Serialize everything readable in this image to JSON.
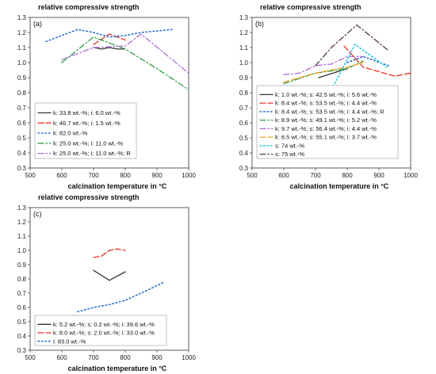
{
  "colors": {
    "black": "#333333",
    "red": "#e8322b",
    "blue": "#2a6fd6",
    "green": "#2ea043",
    "purple": "#b06ad8",
    "orange": "#f0a020",
    "cyan": "#1fc8e0",
    "darkbrown": "#5a3a3a"
  },
  "chart_data": [
    {
      "type": "line",
      "panel": "(a)",
      "title": "relative compressive strength",
      "xlabel": "calcination temperature in °C",
      "ylabel": "",
      "xlim": [
        500,
        1000
      ],
      "ylim": [
        0.3,
        1.3
      ],
      "xticks": [
        500,
        600,
        700,
        800,
        900,
        1000
      ],
      "yticks": [
        0.3,
        0.4,
        0.5,
        0.6,
        0.7,
        0.8,
        0.9,
        1.0,
        1.1,
        1.2,
        1.3
      ],
      "ytick_labels": [
        "0.3",
        "0.4",
        "0.5",
        "0.6",
        "0.7",
        "0.8",
        "0.9",
        "1.0",
        "1.1",
        "1.2",
        "1.3"
      ],
      "legend_position": "lower-left",
      "series": [
        {
          "name": "k: 33.8 wt.-%; i: 6.0 wt.-%",
          "color": "black",
          "dash": "solid",
          "x": [
            700,
            725,
            750,
            775,
            800
          ],
          "y": [
            1.1,
            1.09,
            1.1,
            1.09,
            1.09
          ]
        },
        {
          "name": "k: 46.7 wt.-%; i: 1.5 wt.-%",
          "color": "red",
          "dash": "dash",
          "x": [
            700,
            750,
            800
          ],
          "y": [
            1.12,
            1.19,
            1.15
          ]
        },
        {
          "name": "k: 82.0 wt.-%",
          "color": "blue",
          "dash": "dot",
          "x": [
            550,
            650,
            700,
            750,
            800,
            850,
            900,
            950
          ],
          "y": [
            1.14,
            1.22,
            1.2,
            1.17,
            1.18,
            1.2,
            1.21,
            1.22
          ]
        },
        {
          "name": "k: 25.0 wt.-%; i: 11.0 wt.-%",
          "color": "green",
          "dash": "dashdot",
          "x": [
            600,
            700,
            800,
            900,
            1000
          ],
          "y": [
            1.0,
            1.17,
            1.09,
            0.96,
            0.82
          ]
        },
        {
          "name": "k: 25.0 wt.-%; i: 11.0 wt.-%; R",
          "color": "purple",
          "dash": "dashdot",
          "x": [
            600,
            700,
            800,
            850,
            1000
          ],
          "y": [
            1.02,
            1.1,
            1.11,
            1.19,
            0.93
          ]
        }
      ]
    },
    {
      "type": "line",
      "panel": "(b)",
      "title": "relative compressive strength",
      "xlabel": "calcination temperature in °C",
      "ylabel": "",
      "xlim": [
        500,
        1000
      ],
      "ylim": [
        0.3,
        1.3
      ],
      "xticks": [
        500,
        600,
        700,
        800,
        900,
        1000
      ],
      "yticks": [
        0.3,
        0.4,
        0.5,
        0.6,
        0.7,
        0.8,
        0.9,
        1.0,
        1.1,
        1.2,
        1.3
      ],
      "ytick_labels": [
        "0.3",
        "0.4",
        "0.5",
        "0.6",
        "0.7",
        "0.8",
        "0.9",
        "1.0",
        "1.1",
        "1.2",
        "1.3"
      ],
      "legend_position": "lower-left",
      "series": [
        {
          "name": "k: 1.0 wt.-%; s: 42.5 wt.-%; i: 5.6 wt.-%",
          "color": "black",
          "dash": "solid",
          "x": [
            710,
            800
          ],
          "y": [
            0.9,
            0.96
          ]
        },
        {
          "name": "k: 8.4 wt.-%; s: 53.5 wt.-%; i: 4.4 wt.-%",
          "color": "red",
          "dash": "dash",
          "x": [
            790,
            850,
            950,
            1000
          ],
          "y": [
            1.11,
            0.97,
            0.91,
            0.93
          ]
        },
        {
          "name": "k: 8.4 wt.-%; s: 53.5 wt.-%; i: 4.4 wt.-%; R",
          "color": "blue",
          "dash": "dot",
          "x": [
            800,
            850,
            930
          ],
          "y": [
            1.0,
            1.04,
            0.98
          ]
        },
        {
          "name": "k: 8.9 wt.-%; s: 49.1 wt.-%; i: 5.2 wt.-%",
          "color": "green",
          "dash": "dashdot",
          "x": [
            600,
            700,
            800,
            850
          ],
          "y": [
            0.86,
            0.93,
            0.96,
            1.01
          ]
        },
        {
          "name": "k: 9.7 wt.-%; s: 56.4 wt.-%; i: 4.4 wt.-%",
          "color": "purple",
          "dash": "dashdot",
          "x": [
            600,
            650,
            700,
            750,
            800,
            850
          ],
          "y": [
            0.92,
            0.93,
            0.98,
            0.99,
            1.04,
            1.04
          ]
        },
        {
          "name": "k: 6.5 wt.-%; s: 55.1 wt.-%; i: 3.7 wt.-%",
          "color": "orange",
          "dash": "dash",
          "x": [
            600,
            700,
            800,
            850
          ],
          "y": [
            0.87,
            0.93,
            0.97,
            1.0
          ]
        },
        {
          "name": "s: 74 wt.-%",
          "color": "cyan",
          "dash": "dot",
          "x": [
            750,
            825,
            925
          ],
          "y": [
            0.82,
            1.12,
            0.97
          ]
        },
        {
          "name": "s: 75 wt.-%",
          "color": "darkbrown",
          "dash": "dashdot",
          "x": [
            700,
            750,
            830,
            930
          ],
          "y": [
            0.98,
            1.1,
            1.25,
            1.08
          ]
        }
      ]
    },
    {
      "type": "line",
      "panel": "(c)",
      "title": "relative compressive strength",
      "xlabel": "calcination temperature in °C",
      "ylabel": "",
      "xlim": [
        500,
        1000
      ],
      "ylim": [
        0.3,
        1.3
      ],
      "xticks": [
        500,
        600,
        700,
        800,
        900,
        1000
      ],
      "yticks": [
        0.3,
        0.4,
        0.5,
        0.6,
        0.7,
        0.8,
        0.9,
        1.0,
        1.1,
        1.2,
        1.3
      ],
      "ytick_labels": [
        "0.3",
        "0.4",
        "0.5",
        "0.6",
        "0.7",
        "0.8",
        "0.9",
        "1.0",
        "1.1",
        "1.2",
        "1.3"
      ],
      "legend_position": "lower-left",
      "series": [
        {
          "name": "k: 5.2 wt.-%; s: 0.2 wt.-%; i: 39.6 wt.-%",
          "color": "black",
          "dash": "solid",
          "x": [
            700,
            750,
            800
          ],
          "y": [
            0.86,
            0.79,
            0.85
          ]
        },
        {
          "name": "k: 8.0 wt.-%; s: 2.0 wt.-%; i: 33.0 wt.-%",
          "color": "red",
          "dash": "dash",
          "x": [
            700,
            725,
            750,
            775,
            800
          ],
          "y": [
            0.95,
            0.96,
            1.0,
            1.01,
            1.0
          ]
        },
        {
          "name": "i: 83.0 wt.-%",
          "color": "blue",
          "dash": "dot",
          "x": [
            650,
            700,
            750,
            800,
            850,
            925
          ],
          "y": [
            0.57,
            0.6,
            0.62,
            0.65,
            0.7,
            0.78
          ]
        }
      ]
    }
  ]
}
